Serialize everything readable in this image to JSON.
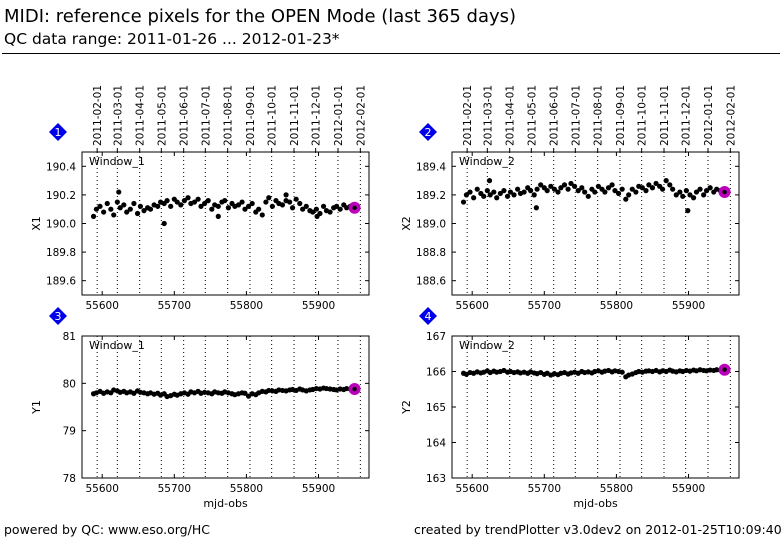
{
  "header": {
    "title": "MIDI: reference pixels for the OPEN Mode (last 365 days)",
    "subtitle": "QC data range: 2011-01-26 ... 2012-01-23*"
  },
  "footer": {
    "left": "powered by QC: www.eso.org/HC",
    "right": "created by trendPlotter v3.0dev2 on 2012-01-25T10:09:40"
  },
  "colors": {
    "marker": "#000000",
    "badge": "#0000ee",
    "highlight": "#bb00bb"
  },
  "chart_data": [
    {
      "type": "scatter",
      "panel_number": "1",
      "label": "Window_1",
      "ylabel": "X1",
      "xlabel": "",
      "xlim": [
        55572,
        55970
      ],
      "ylim": [
        189.5,
        190.5
      ],
      "yticks": [
        189.6,
        189.8,
        190.0,
        190.2,
        190.4
      ],
      "ytick_labels": [
        "189.6",
        "189.8",
        "190.0",
        "190.2",
        "190.4"
      ],
      "xticks": [
        55600,
        55700,
        55800,
        55900
      ],
      "xtick_labels": [
        "55600",
        "55700",
        "55800",
        "55900"
      ],
      "date_ticks": [
        55593,
        55621,
        55652,
        55682,
        55713,
        55743,
        55774,
        55805,
        55835,
        55866,
        55896,
        55927,
        55958
      ],
      "date_labels": [
        "2011-02-01",
        "2011-03-01",
        "2011-04-01",
        "2011-05-01",
        "2011-06-01",
        "2011-07-01",
        "2011-08-01",
        "2011-09-01",
        "2011-10-01",
        "2011-11-01",
        "2011-12-01",
        "2012-01-01",
        "2012-02-01"
      ],
      "points": {
        "x": [
          55588,
          55592,
          55597,
          55602,
          55607,
          55612,
          55616,
          55621,
          55625,
          55630,
          55634,
          55639,
          55644,
          55649,
          55653,
          55658,
          55663,
          55667,
          55672,
          55677,
          55681,
          55686,
          55690,
          55695,
          55700,
          55704,
          55709,
          55714,
          55719,
          55723,
          55728,
          55733,
          55737,
          55742,
          55747,
          55752,
          55756,
          55761,
          55766,
          55770,
          55775,
          55780,
          55784,
          55789,
          55794,
          55798,
          55803,
          55808,
          55813,
          55817,
          55822,
          55827,
          55831,
          55836,
          55841,
          55845,
          55850,
          55855,
          55860,
          55864,
          55869,
          55874,
          55878,
          55883,
          55888,
          55892,
          55897,
          55902,
          55907,
          55911,
          55916,
          55921,
          55925,
          55930,
          55935,
          55939,
          55944,
          55623,
          55686,
          55761,
          55855,
          55898
        ],
        "y": [
          190.05,
          190.1,
          190.12,
          190.08,
          190.14,
          190.1,
          190.06,
          190.15,
          190.11,
          190.13,
          190.08,
          190.1,
          190.14,
          190.07,
          190.12,
          190.09,
          190.11,
          190.1,
          190.13,
          190.12,
          190.15,
          190.14,
          190.16,
          190.12,
          190.17,
          190.15,
          190.13,
          190.16,
          190.18,
          190.14,
          190.15,
          190.17,
          190.12,
          190.14,
          190.16,
          190.1,
          190.13,
          190.12,
          190.15,
          190.16,
          190.11,
          190.14,
          190.12,
          190.13,
          190.15,
          190.1,
          190.12,
          190.14,
          190.08,
          190.1,
          190.06,
          190.15,
          190.18,
          190.12,
          190.16,
          190.14,
          190.13,
          190.16,
          190.15,
          190.11,
          190.17,
          190.14,
          190.1,
          190.12,
          190.09,
          190.08,
          190.1,
          190.07,
          190.12,
          190.09,
          190.08,
          190.11,
          190.12,
          190.1,
          190.13,
          190.11,
          190.12,
          190.22,
          190.0,
          190.05,
          190.2,
          190.05
        ]
      },
      "highlight": {
        "x": 55950,
        "y": 190.11
      }
    },
    {
      "type": "scatter",
      "panel_number": "2",
      "label": "Window_2",
      "ylabel": "X2",
      "xlabel": "",
      "xlim": [
        55572,
        55970
      ],
      "ylim": [
        188.5,
        189.5
      ],
      "yticks": [
        188.6,
        188.8,
        189.0,
        189.2,
        189.4
      ],
      "ytick_labels": [
        "188.6",
        "188.8",
        "189.0",
        "189.2",
        "189.4"
      ],
      "xticks": [
        55600,
        55700,
        55800,
        55900
      ],
      "xtick_labels": [
        "55600",
        "55700",
        "55800",
        "55900"
      ],
      "date_ticks": [
        55593,
        55621,
        55652,
        55682,
        55713,
        55743,
        55774,
        55805,
        55835,
        55866,
        55896,
        55927,
        55958
      ],
      "date_labels": [
        "2011-02-01",
        "2011-03-01",
        "2011-04-01",
        "2011-05-01",
        "2011-06-01",
        "2011-07-01",
        "2011-08-01",
        "2011-09-01",
        "2011-10-01",
        "2011-11-01",
        "2011-12-01",
        "2012-01-01",
        "2012-02-01"
      ],
      "points": {
        "x": [
          55588,
          55592,
          55597,
          55602,
          55607,
          55612,
          55616,
          55621,
          55625,
          55630,
          55634,
          55639,
          55644,
          55649,
          55653,
          55658,
          55663,
          55667,
          55672,
          55677,
          55681,
          55686,
          55690,
          55695,
          55700,
          55704,
          55709,
          55714,
          55719,
          55723,
          55728,
          55733,
          55737,
          55742,
          55747,
          55752,
          55756,
          55761,
          55766,
          55770,
          55775,
          55780,
          55784,
          55789,
          55794,
          55798,
          55803,
          55808,
          55813,
          55817,
          55822,
          55827,
          55831,
          55836,
          55841,
          55845,
          55850,
          55855,
          55860,
          55864,
          55869,
          55874,
          55878,
          55883,
          55888,
          55892,
          55897,
          55902,
          55907,
          55911,
          55916,
          55921,
          55925,
          55930,
          55935,
          55939,
          55944,
          55624,
          55689,
          55899
        ],
        "y": [
          189.15,
          189.2,
          189.22,
          189.18,
          189.24,
          189.21,
          189.19,
          189.23,
          189.2,
          189.22,
          189.18,
          189.21,
          189.23,
          189.19,
          189.22,
          189.2,
          189.24,
          189.21,
          189.22,
          189.25,
          189.23,
          189.2,
          189.24,
          189.27,
          189.25,
          189.23,
          189.26,
          189.24,
          189.22,
          189.25,
          189.27,
          189.24,
          189.28,
          189.26,
          189.23,
          189.25,
          189.22,
          189.19,
          189.24,
          189.22,
          189.26,
          189.24,
          189.22,
          189.25,
          189.27,
          189.23,
          189.21,
          189.24,
          189.17,
          189.2,
          189.24,
          189.22,
          189.26,
          189.25,
          189.23,
          189.27,
          189.25,
          189.28,
          189.26,
          189.24,
          189.3,
          189.27,
          189.24,
          189.2,
          189.22,
          189.19,
          189.23,
          189.2,
          189.18,
          189.22,
          189.24,
          189.2,
          189.23,
          189.25,
          189.22,
          189.24,
          189.23,
          189.3,
          189.11,
          189.09
        ]
      },
      "highlight": {
        "x": 55950,
        "y": 189.22
      }
    },
    {
      "type": "scatter",
      "panel_number": "3",
      "label": "Window_1",
      "ylabel": "Y1",
      "xlabel": "mjd-obs",
      "xlim": [
        55572,
        55970
      ],
      "ylim": [
        78,
        81
      ],
      "yticks": [
        78,
        79,
        80,
        81
      ],
      "ytick_labels": [
        "78",
        "79",
        "80",
        "81"
      ],
      "xticks": [
        55600,
        55700,
        55800,
        55900
      ],
      "xtick_labels": [
        "55600",
        "55700",
        "55800",
        "55900"
      ],
      "date_ticks": [
        55593,
        55621,
        55652,
        55682,
        55713,
        55743,
        55774,
        55805,
        55835,
        55866,
        55896,
        55927,
        55958
      ],
      "points": {
        "x": [
          55588,
          55592,
          55597,
          55602,
          55607,
          55612,
          55616,
          55621,
          55625,
          55630,
          55634,
          55639,
          55644,
          55649,
          55653,
          55658,
          55663,
          55667,
          55672,
          55677,
          55681,
          55686,
          55690,
          55695,
          55700,
          55704,
          55709,
          55714,
          55719,
          55723,
          55728,
          55733,
          55737,
          55742,
          55747,
          55752,
          55756,
          55761,
          55766,
          55770,
          55775,
          55780,
          55784,
          55789,
          55794,
          55798,
          55803,
          55808,
          55813,
          55817,
          55822,
          55827,
          55831,
          55836,
          55841,
          55845,
          55850,
          55855,
          55860,
          55864,
          55869,
          55874,
          55878,
          55883,
          55888,
          55892,
          55897,
          55902,
          55907,
          55911,
          55916,
          55921,
          55925,
          55930,
          55935,
          55939,
          55944
        ],
        "y": [
          79.78,
          79.8,
          79.83,
          79.79,
          79.82,
          79.8,
          79.86,
          79.84,
          79.81,
          79.83,
          79.8,
          79.82,
          79.79,
          79.84,
          79.81,
          79.8,
          79.78,
          79.8,
          79.77,
          79.79,
          79.75,
          79.78,
          79.72,
          79.74,
          79.77,
          79.75,
          79.78,
          79.8,
          79.77,
          79.82,
          79.8,
          79.83,
          79.79,
          79.81,
          79.8,
          79.78,
          79.82,
          79.8,
          79.79,
          79.82,
          79.8,
          79.78,
          79.76,
          79.78,
          79.8,
          79.79,
          79.73,
          79.78,
          79.76,
          79.8,
          79.83,
          79.82,
          79.85,
          79.84,
          79.83,
          79.86,
          79.85,
          79.84,
          79.86,
          79.87,
          79.85,
          79.88,
          79.86,
          79.84,
          79.86,
          79.87,
          79.89,
          79.88,
          79.9,
          79.89,
          79.88,
          79.87,
          79.86,
          79.88,
          79.87,
          79.89,
          79.88
        ]
      },
      "highlight": {
        "x": 55950,
        "y": 79.88
      }
    },
    {
      "type": "scatter",
      "panel_number": "4",
      "label": "Window_2",
      "ylabel": "Y2",
      "xlabel": "mjd-obs",
      "xlim": [
        55572,
        55970
      ],
      "ylim": [
        163,
        167
      ],
      "yticks": [
        163,
        164,
        165,
        166,
        167
      ],
      "ytick_labels": [
        "163",
        "164",
        "165",
        "166",
        "167"
      ],
      "xticks": [
        55600,
        55700,
        55800,
        55900
      ],
      "xtick_labels": [
        "55600",
        "55700",
        "55800",
        "55900"
      ],
      "date_ticks": [
        55593,
        55621,
        55652,
        55682,
        55713,
        55743,
        55774,
        55805,
        55835,
        55866,
        55896,
        55927,
        55958
      ],
      "points": {
        "x": [
          55588,
          55592,
          55597,
          55602,
          55607,
          55612,
          55616,
          55621,
          55625,
          55630,
          55634,
          55639,
          55644,
          55649,
          55653,
          55658,
          55663,
          55667,
          55672,
          55677,
          55681,
          55686,
          55690,
          55695,
          55700,
          55704,
          55709,
          55714,
          55719,
          55723,
          55728,
          55733,
          55737,
          55742,
          55747,
          55752,
          55756,
          55761,
          55766,
          55770,
          55775,
          55780,
          55784,
          55789,
          55794,
          55798,
          55803,
          55808,
          55813,
          55817,
          55822,
          55827,
          55831,
          55836,
          55841,
          55845,
          55850,
          55855,
          55860,
          55864,
          55869,
          55874,
          55878,
          55883,
          55888,
          55892,
          55897,
          55902,
          55907,
          55911,
          55916,
          55921,
          55925,
          55930,
          55935,
          55939,
          55944
        ],
        "y": [
          165.95,
          165.92,
          165.97,
          165.95,
          165.99,
          165.96,
          165.98,
          166.02,
          165.97,
          166.01,
          165.98,
          166.0,
          166.03,
          165.98,
          166.0,
          165.97,
          165.99,
          165.96,
          165.98,
          165.95,
          165.99,
          165.96,
          165.94,
          165.97,
          165.92,
          165.95,
          165.9,
          165.94,
          165.91,
          165.95,
          165.97,
          165.93,
          165.96,
          165.98,
          165.95,
          166.0,
          165.97,
          165.99,
          165.96,
          166.0,
          166.02,
          165.98,
          166.01,
          166.03,
          165.99,
          166.02,
          166.0,
          165.98,
          165.85,
          165.9,
          165.93,
          165.97,
          166.0,
          165.98,
          166.01,
          166.02,
          166.0,
          166.03,
          165.99,
          166.02,
          166.0,
          166.04,
          166.01,
          165.99,
          166.02,
          166.0,
          166.03,
          166.01,
          166.04,
          166.02,
          166.05,
          166.03,
          166.02,
          166.04,
          166.03,
          166.05,
          166.04
        ]
      },
      "highlight": {
        "x": 55950,
        "y": 166.05
      }
    }
  ]
}
